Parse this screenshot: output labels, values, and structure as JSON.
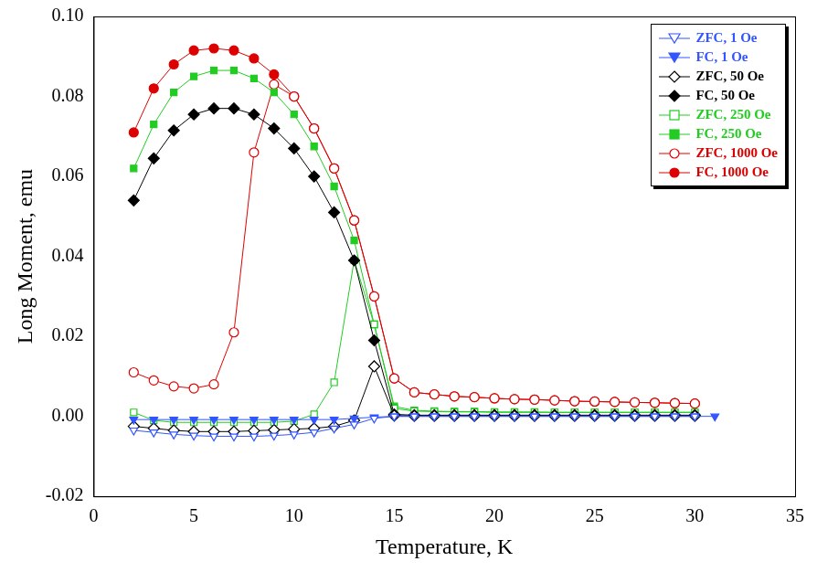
{
  "chart_data": {
    "type": "line",
    "x_label": "Temperature, K",
    "y_label": "Long Moment, emu",
    "xlim": [
      0,
      35
    ],
    "xticks": [
      0,
      5,
      10,
      15,
      20,
      25,
      30,
      35
    ],
    "ylim": [
      -0.02,
      0.1
    ],
    "yticks": [
      -0.02,
      {
        "value": 0,
        "label": "0.00"
      },
      0.02,
      0.04,
      0.06,
      0.08,
      {
        "value": 0.1,
        "label": "0.10"
      }
    ],
    "grid": false,
    "legend": "upper right",
    "x": [
      2,
      3,
      4,
      5,
      6,
      7,
      8,
      9,
      10,
      11,
      12,
      13,
      14,
      15,
      16,
      17,
      18,
      19,
      20,
      21,
      22,
      23,
      24,
      25,
      26,
      27,
      28,
      29,
      30,
      31
    ],
    "series": [
      {
        "name": "ZFC, 1 Oe",
        "color": "#3355ff",
        "marker": "triangle-down-open",
        "values": [
          -0.0035,
          -0.004,
          -0.0045,
          -0.0048,
          -0.005,
          -0.005,
          -0.005,
          -0.0048,
          -0.0045,
          -0.004,
          -0.003,
          -0.002,
          -0.0005,
          0,
          0,
          0,
          0,
          0,
          0,
          0,
          0,
          0,
          0,
          0,
          0,
          0,
          0,
          0,
          0,
          null
        ]
      },
      {
        "name": "FC, 1 Oe",
        "color": "#3355ff",
        "marker": "triangle-down",
        "values": [
          -0.0008,
          -0.0008,
          -0.0008,
          -0.0008,
          -0.0008,
          -0.0008,
          -0.0008,
          -0.0008,
          -0.0008,
          -0.0008,
          -0.0008,
          -0.0005,
          -0.0002,
          0,
          0,
          0,
          0,
          0,
          0,
          0,
          0,
          0,
          0,
          0,
          0,
          0,
          0,
          0,
          0,
          0
        ]
      },
      {
        "name": "ZFC, 50 Oe",
        "color": "#000000",
        "marker": "diamond-open",
        "values": [
          -0.0025,
          -0.003,
          -0.0035,
          -0.0038,
          -0.0038,
          -0.0038,
          -0.0036,
          -0.0034,
          -0.0032,
          -0.003,
          -0.0025,
          -0.001,
          0.0125,
          0.0002,
          0.0001,
          0.0001,
          0.0001,
          0.0001,
          0.0001,
          0.0001,
          0.0001,
          0.0001,
          0.0001,
          0.0001,
          0.0001,
          0.0001,
          0.0001,
          0.0001,
          0.0001,
          null
        ]
      },
      {
        "name": "FC, 50 Oe",
        "color": "#000000",
        "marker": "diamond",
        "values": [
          0.054,
          0.0645,
          0.0715,
          0.0755,
          0.077,
          0.077,
          0.0755,
          0.072,
          0.067,
          0.06,
          0.051,
          0.039,
          0.019,
          0.0005,
          0.0003,
          0.0003,
          0.0003,
          0.0003,
          0.0003,
          0.0003,
          0.0003,
          0.0003,
          0.0003,
          0.0003,
          0.0003,
          0.0003,
          0.0003,
          0.0003,
          0.0003,
          null
        ]
      },
      {
        "name": "ZFC, 250 Oe",
        "color": "#22cc22",
        "marker": "square-open",
        "values": [
          0.001,
          -0.001,
          -0.0015,
          -0.0015,
          -0.0015,
          -0.0015,
          -0.0015,
          -0.0015,
          -0.0012,
          0.0005,
          0.0085,
          0.039,
          0.023,
          0.002,
          0.0013,
          0.0012,
          0.0011,
          0.0011,
          0.001,
          0.001,
          0.001,
          0.001,
          0.001,
          0.001,
          0.001,
          0.001,
          0.001,
          0.001,
          0.001,
          null
        ]
      },
      {
        "name": "FC, 250 Oe",
        "color": "#22cc22",
        "marker": "square",
        "values": [
          0.062,
          0.073,
          0.081,
          0.085,
          0.0865,
          0.0865,
          0.0845,
          0.081,
          0.0755,
          0.0675,
          0.0575,
          0.044,
          0.023,
          0.0025,
          0.0015,
          0.0013,
          0.0012,
          0.0012,
          0.0011,
          0.0011,
          0.0011,
          0.001,
          0.001,
          0.001,
          0.001,
          0.001,
          0.001,
          0.001,
          0.001,
          null
        ]
      },
      {
        "name": "ZFC, 1000 Oe",
        "color": "#dd0000",
        "marker": "circle-open",
        "values": [
          0.011,
          0.009,
          0.0075,
          0.007,
          0.008,
          0.021,
          0.066,
          0.083,
          0.08,
          0.072,
          0.062,
          0.049,
          0.03,
          0.0095,
          0.006,
          0.0055,
          0.005,
          0.0048,
          0.0045,
          0.0043,
          0.0042,
          0.004,
          0.0038,
          0.0037,
          0.0036,
          0.0035,
          0.0034,
          0.0033,
          0.0032,
          null
        ]
      },
      {
        "name": "FC, 1000 Oe",
        "color": "#dd0000",
        "marker": "circle",
        "values": [
          0.071,
          0.082,
          0.088,
          0.0915,
          0.092,
          0.0915,
          0.0895,
          0.0855,
          0.08,
          0.072,
          0.062,
          0.049,
          0.03,
          0.0095,
          0.006,
          0.0055,
          0.005,
          0.0048,
          0.0045,
          0.0043,
          0.0042,
          0.004,
          0.0038,
          0.0037,
          0.0036,
          0.0035,
          0.0034,
          0.0033,
          0.0032,
          null
        ]
      }
    ]
  }
}
